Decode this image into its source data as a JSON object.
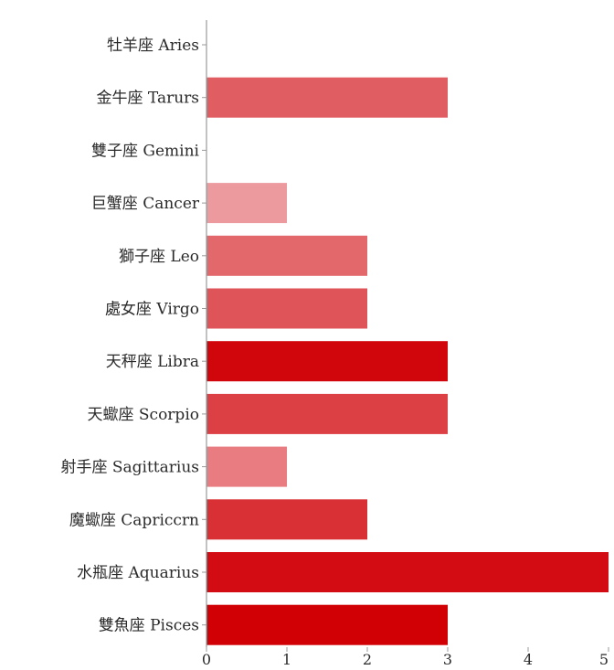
{
  "chart_data": {
    "type": "bar",
    "orientation": "horizontal",
    "categories": [
      "牡羊座 Aries",
      "金牛座 Tarurs",
      "雙子座 Gemini",
      "巨蟹座 Cancer",
      "獅子座 Leo",
      "處女座 Virgo",
      "天秤座 Libra",
      "天蠍座 Scorpio",
      "射手座 Sagittarius",
      "魔蠍座 Capriccrn",
      "水瓶座 Aquarius",
      "雙魚座 Pisces"
    ],
    "values": [
      0,
      3,
      0,
      1,
      2,
      2,
      3,
      3,
      1,
      2,
      5,
      3
    ],
    "bar_colors": [
      "#e05a5e",
      "#e05e62",
      "#e05a5e",
      "#ec9a9e",
      "#e2686c",
      "#de5458",
      "#d0060c",
      "#dc4044",
      "#e87c80",
      "#d83034",
      "#d20c12",
      "#d00004"
    ],
    "xlim": [
      0,
      5
    ],
    "xticks": [
      "0",
      "1",
      "2",
      "3",
      "4",
      "5"
    ],
    "title": "",
    "xlabel": "",
    "ylabel": "",
    "grid": false,
    "axis_color": "#9a9a9a",
    "label_color": "#2a2a2a"
  }
}
